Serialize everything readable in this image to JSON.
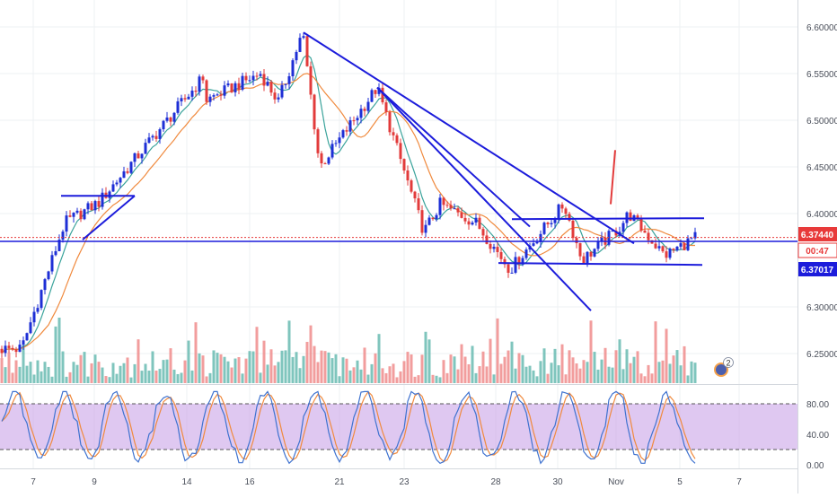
{
  "colors": {
    "up": "#1e2fd6",
    "down": "#e23b3b",
    "ma_fast": "#3aa39b",
    "ma_slow": "#f08a3e",
    "trend": "#1c1cdb",
    "vol_up": "#5fb7ad",
    "vol_down": "#ef8585",
    "osc_fill": "#c9a4e8",
    "osc_k": "#3f72cf",
    "osc_d": "#f08a3e",
    "price_tag": "#e83a3a",
    "level_tag": "#1c1cdb"
  },
  "chart_data": [
    {
      "type": "candlestick",
      "ylim": [
        6.215,
        6.6075
      ],
      "y_ticks": [
        "6.60000",
        "6.55000",
        "6.50000",
        "6.45000",
        "6.40000",
        "6.30000",
        "6.25000"
      ],
      "x_ticks": [
        "7",
        "9",
        "14",
        "16",
        "21",
        "23",
        "28",
        "30",
        "Nov",
        "5",
        "7"
      ],
      "last_price": "6.37440",
      "countdown": "00:47",
      "level_price": "6.37017",
      "events_badge": "2",
      "key_points": [
        {
          "x": "7",
          "y": 6.255
        },
        {
          "x": "8",
          "y": 6.39
        },
        {
          "x": "9",
          "y": 6.412
        },
        {
          "x": "12",
          "y": 6.548
        },
        {
          "x": "14",
          "y": 6.51
        },
        {
          "x": "16",
          "y": 6.55
        },
        {
          "x": "17",
          "y": 6.52
        },
        {
          "x": "19",
          "y": 6.594
        },
        {
          "x": "20",
          "y": 6.45
        },
        {
          "x": "22",
          "y": 6.535
        },
        {
          "x": "23",
          "y": 6.38
        },
        {
          "x": "24",
          "y": 6.41
        },
        {
          "x": "27",
          "y": 6.39
        },
        {
          "x": "28",
          "y": 6.34
        },
        {
          "x": "30",
          "y": 6.41
        },
        {
          "x": "31",
          "y": 6.35
        },
        {
          "x": "Nov",
          "y": 6.385
        },
        {
          "x": "3",
          "y": 6.4
        },
        {
          "x": "4",
          "y": 6.355
        },
        {
          "x": "5",
          "y": 6.374
        }
      ]
    },
    {
      "type": "line",
      "title": "",
      "ylim": [
        -8,
        100
      ],
      "y_ticks": [
        "80.00",
        "40.00",
        "0.00"
      ],
      "bands": [
        80,
        20
      ]
    }
  ]
}
